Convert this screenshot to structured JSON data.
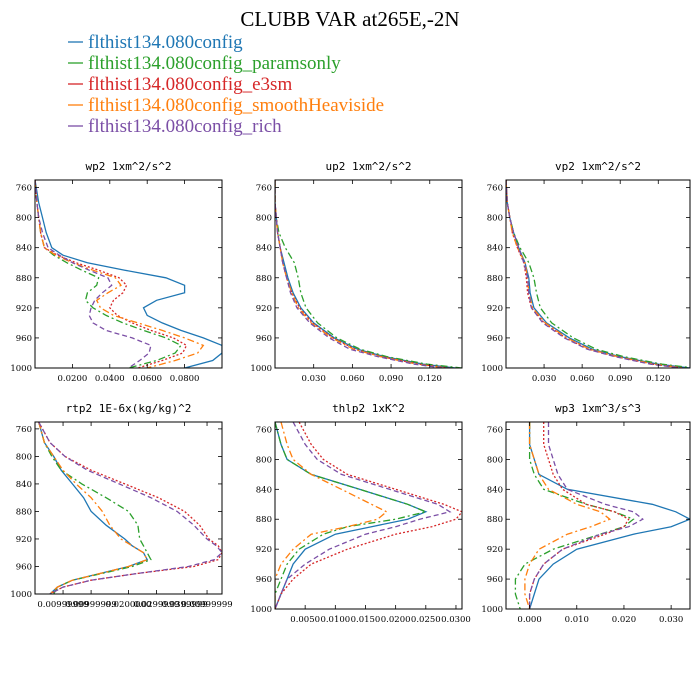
{
  "figure": {
    "title": "CLUBB VAR at265E,-2N",
    "colors": {
      "blue": "#1f77b4",
      "green": "#2ca02c",
      "red": "#d62728",
      "orange": "#ff7f0e",
      "purple": "#7b4fa6"
    }
  },
  "legend": [
    {
      "label": "flthist134.080config",
      "color": "#1f77b4",
      "dash": "solid"
    },
    {
      "label": "flthist134.080config_paramsonly",
      "color": "#2ca02c",
      "dash": "dashdot"
    },
    {
      "label": "flthist134.080config_e3sm",
      "color": "#d62728",
      "dash": "dotted"
    },
    {
      "label": "flthist134.080config_smoothHeaviside",
      "color": "#ff7f0e",
      "dash": "dashdot"
    },
    {
      "label": "flthist134.080config_rich",
      "color": "#7b4fa6",
      "dash": "dashed"
    }
  ],
  "chart_data": [
    {
      "type": "line",
      "title": "wp2  1xm^2/s^2",
      "xlim": [
        0,
        0.1
      ],
      "ylim": [
        1000,
        750
      ],
      "xticks": [
        0.02,
        0.04,
        0.06,
        0.08
      ],
      "xtick_labels": [
        "0.0200",
        "0.0400",
        "0.0600",
        "0.0800"
      ],
      "yticks": [
        760,
        800,
        840,
        880,
        920,
        960,
        1000
      ],
      "y": [
        750,
        780,
        800,
        820,
        840,
        850,
        860,
        870,
        880,
        890,
        900,
        910,
        920,
        930,
        940,
        950,
        960,
        970,
        980,
        990,
        1000
      ],
      "series": [
        {
          "name": "flthist134.080config",
          "values": [
            0.0,
            0.002,
            0.004,
            0.006,
            0.009,
            0.015,
            0.028,
            0.048,
            0.07,
            0.08,
            0.08,
            0.065,
            0.058,
            0.06,
            0.068,
            0.078,
            0.09,
            0.1,
            0.1,
            0.095,
            0.08
          ]
        },
        {
          "name": "flthist134.080config_paramsonly",
          "values": [
            0.0,
            0.001,
            0.002,
            0.003,
            0.005,
            0.01,
            0.017,
            0.025,
            0.034,
            0.033,
            0.028,
            0.027,
            0.031,
            0.038,
            0.047,
            0.058,
            0.07,
            0.078,
            0.075,
            0.065,
            0.05
          ]
        },
        {
          "name": "flthist134.080config_e3sm",
          "values": [
            0.0,
            0.001,
            0.002,
            0.003,
            0.005,
            0.012,
            0.022,
            0.034,
            0.045,
            0.049,
            0.047,
            0.042,
            0.04,
            0.044,
            0.052,
            0.062,
            0.074,
            0.081,
            0.079,
            0.068,
            0.055
          ]
        },
        {
          "name": "flthist134.080config_smoothHeaviside",
          "values": [
            0.0,
            0.001,
            0.002,
            0.003,
            0.005,
            0.011,
            0.02,
            0.031,
            0.043,
            0.046,
            0.039,
            0.033,
            0.035,
            0.042,
            0.055,
            0.068,
            0.08,
            0.09,
            0.087,
            0.075,
            0.06
          ]
        },
        {
          "name": "flthist134.080config_rich",
          "values": [
            0.0,
            0.001,
            0.002,
            0.004,
            0.007,
            0.013,
            0.02,
            0.029,
            0.039,
            0.041,
            0.036,
            0.032,
            0.03,
            0.029,
            0.031,
            0.038,
            0.052,
            0.062,
            0.061,
            0.056,
            0.05
          ]
        }
      ]
    },
    {
      "type": "line",
      "title": "up2  1xm^2/s^2",
      "xlim": [
        0,
        0.145
      ],
      "ylim": [
        1000,
        750
      ],
      "xticks": [
        0.03,
        0.06,
        0.09,
        0.12
      ],
      "xtick_labels": [
        "0.030",
        "0.060",
        "0.090",
        "0.120"
      ],
      "yticks": [
        760,
        800,
        840,
        880,
        920,
        960,
        1000
      ],
      "y": [
        750,
        780,
        800,
        820,
        840,
        860,
        880,
        900,
        920,
        940,
        960,
        975,
        985,
        995,
        1000
      ],
      "series": [
        {
          "name": "flthist134.080config",
          "values": [
            0.0,
            0.0,
            0.001,
            0.002,
            0.004,
            0.007,
            0.01,
            0.014,
            0.02,
            0.03,
            0.046,
            0.064,
            0.085,
            0.115,
            0.14
          ]
        },
        {
          "name": "flthist134.080config_paramsonly",
          "values": [
            0.0,
            0.0,
            0.001,
            0.003,
            0.008,
            0.015,
            0.018,
            0.02,
            0.024,
            0.033,
            0.048,
            0.066,
            0.087,
            0.118,
            0.145
          ]
        },
        {
          "name": "flthist134.080config_e3sm",
          "values": [
            0.0,
            0.0,
            0.001,
            0.002,
            0.004,
            0.006,
            0.009,
            0.013,
            0.019,
            0.029,
            0.045,
            0.062,
            0.083,
            0.112,
            0.135
          ]
        },
        {
          "name": "flthist134.080config_smoothHeaviside",
          "values": [
            0.0,
            0.0,
            0.001,
            0.002,
            0.004,
            0.006,
            0.009,
            0.013,
            0.018,
            0.028,
            0.044,
            0.061,
            0.082,
            0.11,
            0.132
          ]
        },
        {
          "name": "flthist134.080config_rich",
          "values": [
            0.0,
            0.0,
            0.001,
            0.002,
            0.004,
            0.006,
            0.009,
            0.012,
            0.017,
            0.027,
            0.042,
            0.058,
            0.08,
            0.108,
            0.13
          ]
        }
      ]
    },
    {
      "type": "line",
      "title": "vp2  1xm^2/s^2",
      "xlim": [
        0,
        0.145
      ],
      "ylim": [
        1000,
        750
      ],
      "xticks": [
        0.03,
        0.06,
        0.09,
        0.12
      ],
      "xtick_labels": [
        "0.030",
        "0.060",
        "0.090",
        "0.120"
      ],
      "yticks": [
        760,
        800,
        840,
        880,
        920,
        960,
        1000
      ],
      "y": [
        750,
        780,
        800,
        820,
        840,
        860,
        880,
        900,
        920,
        940,
        960,
        975,
        985,
        995,
        1000
      ],
      "series": [
        {
          "name": "flthist134.080config",
          "values": [
            0.0,
            0.001,
            0.003,
            0.006,
            0.01,
            0.015,
            0.018,
            0.019,
            0.022,
            0.032,
            0.05,
            0.068,
            0.09,
            0.12,
            0.145
          ]
        },
        {
          "name": "flthist134.080config_paramsonly",
          "values": [
            0.0,
            0.001,
            0.003,
            0.006,
            0.011,
            0.018,
            0.022,
            0.024,
            0.027,
            0.036,
            0.053,
            0.071,
            0.093,
            0.123,
            0.148
          ]
        },
        {
          "name": "flthist134.080config_e3sm",
          "values": [
            0.0,
            0.001,
            0.003,
            0.005,
            0.009,
            0.014,
            0.016,
            0.017,
            0.02,
            0.03,
            0.047,
            0.065,
            0.087,
            0.116,
            0.14
          ]
        },
        {
          "name": "flthist134.080config_smoothHeaviside",
          "values": [
            0.0,
            0.001,
            0.003,
            0.005,
            0.009,
            0.015,
            0.017,
            0.018,
            0.021,
            0.031,
            0.048,
            0.066,
            0.088,
            0.117,
            0.14
          ]
        },
        {
          "name": "flthist134.080config_rich",
          "values": [
            0.0,
            0.001,
            0.003,
            0.006,
            0.01,
            0.014,
            0.017,
            0.018,
            0.02,
            0.029,
            0.046,
            0.064,
            0.086,
            0.114,
            0.138
          ]
        }
      ]
    },
    {
      "type": "line",
      "title": "rtp2  1E-6x(kg/kg)^2",
      "xlim": [
        0,
        1.0
      ],
      "ylim": [
        1000,
        750
      ],
      "xticks": [
        0.15,
        0.3,
        0.5,
        0.65,
        0.8,
        0.92
      ],
      "xtick_labels": [
        "0.00999999",
        "0.00999999",
        "0.0200000",
        "0.0299999",
        "0.0399999",
        "0.00999999"
      ],
      "yticks": [
        760,
        800,
        840,
        880,
        920,
        960,
        1000
      ],
      "y": [
        750,
        780,
        800,
        820,
        840,
        860,
        880,
        900,
        920,
        930,
        940,
        950,
        960,
        970,
        980,
        990,
        1000
      ],
      "series": [
        {
          "name": "flthist134.080config",
          "values": [
            0.02,
            0.05,
            0.1,
            0.14,
            0.2,
            0.26,
            0.3,
            0.38,
            0.48,
            0.52,
            0.58,
            0.6,
            0.5,
            0.35,
            0.2,
            0.12,
            0.08
          ]
        },
        {
          "name": "flthist134.080config_paramsonly",
          "values": [
            0.02,
            0.05,
            0.09,
            0.14,
            0.25,
            0.38,
            0.5,
            0.55,
            0.56,
            0.58,
            0.6,
            0.62,
            0.52,
            0.36,
            0.2,
            0.12,
            0.1
          ]
        },
        {
          "name": "flthist134.080config_e3sm",
          "values": [
            0.02,
            0.08,
            0.16,
            0.3,
            0.48,
            0.66,
            0.8,
            0.88,
            0.93,
            0.98,
            1.0,
            0.98,
            0.85,
            0.55,
            0.3,
            0.15,
            0.08
          ]
        },
        {
          "name": "flthist134.080config_smoothHeaviside",
          "values": [
            0.02,
            0.05,
            0.1,
            0.15,
            0.22,
            0.3,
            0.36,
            0.4,
            0.46,
            0.52,
            0.58,
            0.6,
            0.5,
            0.35,
            0.2,
            0.12,
            0.08
          ]
        },
        {
          "name": "flthist134.080config_rich",
          "values": [
            0.02,
            0.08,
            0.16,
            0.28,
            0.45,
            0.62,
            0.76,
            0.85,
            0.92,
            0.97,
            1.0,
            0.96,
            0.82,
            0.55,
            0.3,
            0.15,
            0.08
          ]
        }
      ]
    },
    {
      "type": "line",
      "title": "thlp2  1xK^2",
      "xlim": [
        0,
        0.031
      ],
      "ylim": [
        1000,
        750
      ],
      "xticks": [
        0.005,
        0.01,
        0.015,
        0.02,
        0.025,
        0.03
      ],
      "xtick_labels": [
        "0.0050",
        "0.0100",
        "0.0150",
        "0.0200",
        "0.0250",
        "0.0300"
      ],
      "yticks": [
        760,
        800,
        840,
        880,
        920,
        960,
        1000
      ],
      "y": [
        750,
        780,
        800,
        820,
        840,
        860,
        870,
        880,
        890,
        900,
        920,
        940,
        960,
        980,
        1000
      ],
      "series": [
        {
          "name": "flthist134.080config",
          "values": [
            0.0,
            0.001,
            0.002,
            0.006,
            0.014,
            0.022,
            0.025,
            0.022,
            0.016,
            0.01,
            0.005,
            0.003,
            0.002,
            0.001,
            0.0
          ]
        },
        {
          "name": "flthist134.080config_paramsonly",
          "values": [
            0.0,
            0.001,
            0.002,
            0.006,
            0.014,
            0.022,
            0.025,
            0.02,
            0.012,
            0.008,
            0.004,
            0.002,
            0.001,
            0.0,
            0.0
          ]
        },
        {
          "name": "flthist134.080config_e3sm",
          "values": [
            0.004,
            0.006,
            0.008,
            0.012,
            0.02,
            0.028,
            0.031,
            0.03,
            0.026,
            0.02,
            0.012,
            0.006,
            0.003,
            0.001,
            0.0
          ]
        },
        {
          "name": "flthist134.080config_smoothHeaviside",
          "values": [
            0.001,
            0.002,
            0.003,
            0.006,
            0.011,
            0.016,
            0.0185,
            0.017,
            0.012,
            0.006,
            0.003,
            0.001,
            0.0,
            0.0,
            0.0
          ]
        },
        {
          "name": "flthist134.080config_rich",
          "values": [
            0.003,
            0.005,
            0.007,
            0.011,
            0.019,
            0.027,
            0.029,
            0.024,
            0.02,
            0.015,
            0.009,
            0.005,
            0.002,
            0.001,
            0.0
          ]
        }
      ]
    },
    {
      "type": "line",
      "title": "wp3  1xm^3/s^3",
      "xlim": [
        -0.005,
        0.034
      ],
      "ylim": [
        1000,
        750
      ],
      "xticks": [
        0.0,
        0.01,
        0.02,
        0.03
      ],
      "xtick_labels": [
        "0.000",
        "0.010",
        "0.020",
        "0.030"
      ],
      "yticks": [
        760,
        800,
        840,
        880,
        920,
        960,
        1000
      ],
      "y": [
        750,
        780,
        800,
        820,
        840,
        860,
        870,
        880,
        890,
        900,
        920,
        940,
        960,
        980,
        1000
      ],
      "series": [
        {
          "name": "flthist134.080config",
          "values": [
            0.0,
            0.0,
            0.001,
            0.002,
            0.008,
            0.026,
            0.031,
            0.034,
            0.03,
            0.022,
            0.01,
            0.005,
            0.002,
            0.001,
            0.0
          ]
        },
        {
          "name": "flthist134.080config_paramsonly",
          "values": [
            0.0,
            0.0,
            0.0,
            0.001,
            0.003,
            0.012,
            0.018,
            0.022,
            0.02,
            0.015,
            0.005,
            -0.001,
            -0.003,
            -0.003,
            -0.002
          ]
        },
        {
          "name": "flthist134.080config_e3sm",
          "values": [
            0.003,
            0.003,
            0.004,
            0.005,
            0.007,
            0.012,
            0.018,
            0.021,
            0.02,
            0.016,
            0.007,
            0.003,
            0.001,
            0.0,
            0.0
          ]
        },
        {
          "name": "flthist134.080config_smoothHeaviside",
          "values": [
            0.0,
            0.0,
            0.001,
            0.002,
            0.004,
            0.01,
            0.015,
            0.017,
            0.013,
            0.008,
            0.002,
            0.0,
            -0.001,
            -0.001,
            0.0
          ]
        },
        {
          "name": "flthist134.080config_rich",
          "values": [
            0.004,
            0.004,
            0.005,
            0.006,
            0.008,
            0.016,
            0.022,
            0.024,
            0.021,
            0.015,
            0.007,
            0.003,
            0.001,
            0.0,
            0.0
          ]
        }
      ]
    }
  ]
}
